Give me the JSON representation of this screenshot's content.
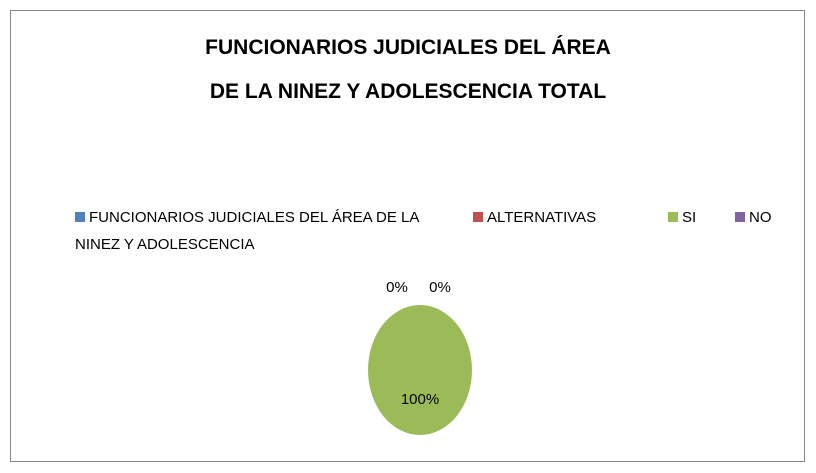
{
  "chart_data": {
    "type": "pie",
    "title": [
      "FUNCIONARIOS JUDICIALES DEL ÁREA",
      "DE LA NINEZ Y ADOLESCENCIA  TOTAL"
    ],
    "categories": [
      "FUNCIONARIOS JUDICIALES DEL ÁREA DE LA NINEZ Y ADOLESCENCIA",
      "ALTERNATIVAS",
      "SI",
      "NO"
    ],
    "colors": [
      "#4f81bd",
      "#c0504d",
      "#9bbb59",
      "#8064a2"
    ],
    "values": [
      null,
      0,
      100,
      0
    ],
    "value_labels": [
      null,
      "0%",
      "100%",
      "0%"
    ],
    "legend": "top"
  }
}
